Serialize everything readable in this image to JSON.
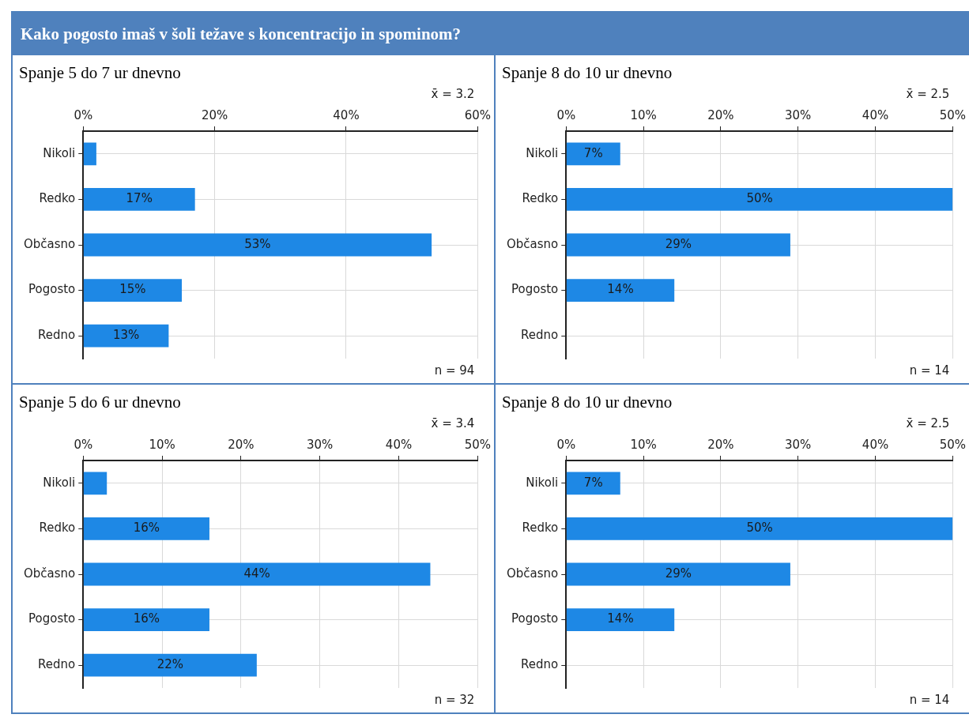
{
  "chart_data": [
    {
      "type": "bar",
      "orientation": "horizontal",
      "title": "Kako pogosto imaš v šoli težave s koncentracijo in spominom?",
      "subtitle": "Spanje 5 do 7 ur dnevno",
      "categories": [
        "Nikoli",
        "Redko",
        "Občasno",
        "Pogosto",
        "Redno"
      ],
      "values": [
        2,
        17,
        53,
        15,
        13
      ],
      "value_labels": [
        null,
        "17%",
        "53%",
        "15%",
        "13%"
      ],
      "color": "#1e88e5",
      "xlim": [
        0,
        60
      ],
      "xticks": [
        {
          "value": 0,
          "label": "0%"
        },
        {
          "value": 20,
          "label": "20%"
        },
        {
          "value": 40,
          "label": "40%"
        },
        {
          "value": 60,
          "label": "60%"
        }
      ],
      "grid": true,
      "annotations": [
        "x̄ = 3.2",
        "n = 94"
      ]
    },
    {
      "type": "bar",
      "orientation": "horizontal",
      "subtitle": "Spanje 8 do 10 ur dnevno",
      "categories": [
        "Nikoli",
        "Redko",
        "Občasno",
        "Pogosto",
        "Redno"
      ],
      "values": [
        7,
        50,
        29,
        14,
        0
      ],
      "value_labels": [
        "7%",
        "50%",
        "29%",
        "14%",
        null
      ],
      "color": "#1e88e5",
      "xlim": [
        0,
        50
      ],
      "xticks": [
        {
          "value": 0,
          "label": "0%"
        },
        {
          "value": 10,
          "label": "10%"
        },
        {
          "value": 20,
          "label": "20%"
        },
        {
          "value": 30,
          "label": "30%"
        },
        {
          "value": 40,
          "label": "40%"
        },
        {
          "value": 50,
          "label": "50%"
        }
      ],
      "grid": true,
      "annotations": [
        "x̄ = 2.5",
        "n = 14"
      ]
    },
    {
      "type": "bar",
      "orientation": "horizontal",
      "subtitle": "Spanje 5 do 6 ur dnevno",
      "categories": [
        "Nikoli",
        "Redko",
        "Občasno",
        "Pogosto",
        "Redno"
      ],
      "values": [
        3,
        16,
        44,
        16,
        22
      ],
      "value_labels": [
        null,
        "16%",
        "44%",
        "16%",
        "22%"
      ],
      "color": "#1e88e5",
      "xlim": [
        0,
        50
      ],
      "xticks": [
        {
          "value": 0,
          "label": "0%"
        },
        {
          "value": 10,
          "label": "10%"
        },
        {
          "value": 20,
          "label": "20%"
        },
        {
          "value": 30,
          "label": "30%"
        },
        {
          "value": 40,
          "label": "40%"
        },
        {
          "value": 50,
          "label": "50%"
        }
      ],
      "grid": true,
      "annotations": [
        "x̄ = 3.4",
        "n = 32"
      ]
    },
    {
      "type": "bar",
      "orientation": "horizontal",
      "subtitle": "Spanje 8 do 10 ur dnevno",
      "categories": [
        "Nikoli",
        "Redko",
        "Občasno",
        "Pogosto",
        "Redno"
      ],
      "values": [
        7,
        50,
        29,
        14,
        0
      ],
      "value_labels": [
        "7%",
        "50%",
        "29%",
        "14%",
        null
      ],
      "color": "#1e88e5",
      "xlim": [
        0,
        50
      ],
      "xticks": [
        {
          "value": 0,
          "label": "0%"
        },
        {
          "value": 10,
          "label": "10%"
        },
        {
          "value": 20,
          "label": "20%"
        },
        {
          "value": 30,
          "label": "30%"
        },
        {
          "value": 40,
          "label": "40%"
        },
        {
          "value": 50,
          "label": "50%"
        }
      ],
      "grid": true,
      "annotations": [
        "x̄ = 2.5",
        "n = 14"
      ]
    }
  ]
}
